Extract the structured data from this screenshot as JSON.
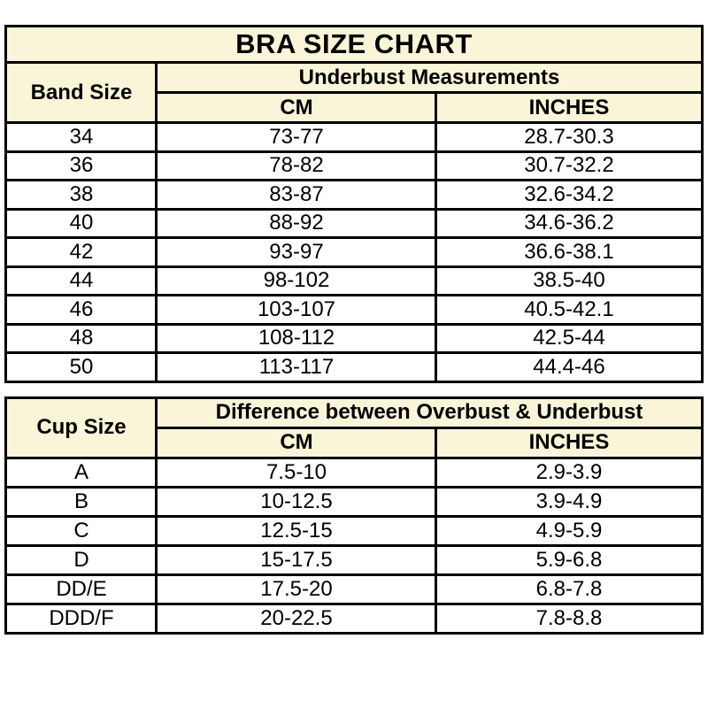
{
  "colors": {
    "header_bg": "#faf5d9",
    "border": "#000000",
    "row_bg": "#ffffff",
    "text": "#000000"
  },
  "chart_data": [
    {
      "type": "table",
      "title": "BRA SIZE CHART",
      "corner_header": "Band Size",
      "group_header": "Underbust Measurements",
      "columns": [
        "CM",
        "INCHES"
      ],
      "rows": [
        {
          "label": "34",
          "cm": "73-77",
          "inches": "28.7-30.3"
        },
        {
          "label": "36",
          "cm": "78-82",
          "inches": "30.7-32.2"
        },
        {
          "label": "38",
          "cm": "83-87",
          "inches": "32.6-34.2"
        },
        {
          "label": "40",
          "cm": "88-92",
          "inches": "34.6-36.2"
        },
        {
          "label": "42",
          "cm": "93-97",
          "inches": "36.6-38.1"
        },
        {
          "label": "44",
          "cm": "98-102",
          "inches": "38.5-40"
        },
        {
          "label": "46",
          "cm": "103-107",
          "inches": "40.5-42.1"
        },
        {
          "label": "48",
          "cm": "108-112",
          "inches": "42.5-44"
        },
        {
          "label": "50",
          "cm": "113-117",
          "inches": "44.4-46"
        }
      ]
    },
    {
      "type": "table",
      "title": "",
      "corner_header": "Cup Size",
      "group_header": "Difference between Overbust & Underbust",
      "columns": [
        "CM",
        "INCHES"
      ],
      "rows": [
        {
          "label": "A",
          "cm": "7.5-10",
          "inches": "2.9-3.9"
        },
        {
          "label": "B",
          "cm": "10-12.5",
          "inches": "3.9-4.9"
        },
        {
          "label": "C",
          "cm": "12.5-15",
          "inches": "4.9-5.9"
        },
        {
          "label": "D",
          "cm": "15-17.5",
          "inches": "5.9-6.8"
        },
        {
          "label": "DD/E",
          "cm": "17.5-20",
          "inches": "6.8-7.8"
        },
        {
          "label": "DDD/F",
          "cm": "20-22.5",
          "inches": "7.8-8.8"
        }
      ]
    }
  ]
}
